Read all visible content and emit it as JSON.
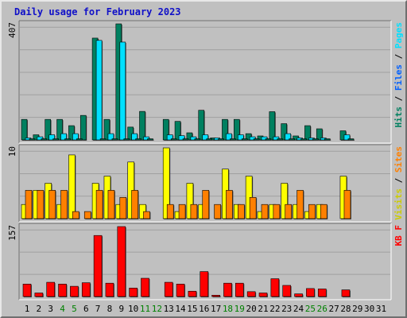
{
  "chart_data": {
    "type": "bar",
    "title": "Daily usage for February 2023",
    "days": [
      "1",
      "2",
      "3",
      "4",
      "5",
      "6",
      "7",
      "8",
      "9",
      "10",
      "11",
      "12",
      "13",
      "14",
      "15",
      "16",
      "17",
      "18",
      "19",
      "20",
      "21",
      "22",
      "23",
      "24",
      "25",
      "26",
      "27",
      "28",
      "29",
      "30",
      "31"
    ],
    "weekend_days": [
      4,
      5,
      11,
      12,
      18,
      19,
      25,
      26
    ],
    "colors": {
      "pages": "#008060",
      "files": "#00e0ff",
      "hits": "#008060",
      "visits": "#ffff00",
      "sites": "#ff8000",
      "kbf": "#ff0000",
      "weekend_tick": "#008000",
      "tick": "#000000"
    },
    "panels": [
      {
        "id": "hits-panel",
        "max_label": "407",
        "ymax": 407,
        "legend": [
          {
            "text": "Hits",
            "color": "#008060"
          },
          {
            "text": " / ",
            "color": "#000000"
          },
          {
            "text": "Files",
            "color": "#0060ff"
          },
          {
            "text": " / ",
            "color": "#000000"
          },
          {
            "text": "Pages",
            "color": "#00e0ff"
          }
        ],
        "series": [
          {
            "name": "Hits",
            "key": "hits",
            "values": [
              72,
              18,
              72,
              72,
              50,
              86,
              357,
              72,
              407,
              45,
              100,
              0,
              72,
              65,
              25,
              104,
              7,
              72,
              72,
              22,
              14,
              99,
              57,
              14,
              50,
              39,
              0,
              32,
              0,
              0,
              0
            ]
          },
          {
            "name": "Files",
            "key": "files",
            "values": [
              7,
              11,
              18,
              22,
              22,
              0,
              349,
              22,
              343,
              22,
              11,
              0,
              18,
              15,
              11,
              18,
              7,
              22,
              18,
              11,
              11,
              11,
              22,
              7,
              7,
              7,
              0,
              18,
              0,
              0,
              0
            ]
          },
          {
            "name": "Pages",
            "key": "pages",
            "values": [
              4,
              4,
              4,
              4,
              4,
              0,
              4,
              4,
              4,
              4,
              4,
              0,
              4,
              4,
              4,
              4,
              4,
              4,
              4,
              4,
              4,
              4,
              4,
              4,
              4,
              4,
              0,
              4,
              0,
              0,
              0
            ]
          }
        ]
      },
      {
        "id": "visits-panel",
        "max_label": "10",
        "ymax": 10,
        "legend": [
          {
            "text": "Visits",
            "color": "#cccc00"
          },
          {
            "text": " / ",
            "color": "#000000"
          },
          {
            "text": "Sites",
            "color": "#ff8000"
          }
        ],
        "series": [
          {
            "name": "Visits",
            "key": "visits",
            "values": [
              2,
              4,
              5,
              2,
              9,
              0,
              5,
              6,
              2,
              8,
              2,
              0,
              10,
              1,
              5,
              2,
              0,
              7,
              2,
              6,
              1,
              2,
              5,
              2,
              1,
              2,
              0,
              6,
              0,
              0,
              0
            ]
          },
          {
            "name": "Sites",
            "key": "sites",
            "values": [
              4,
              4,
              4,
              4,
              1,
              1,
              4,
              4,
              3,
              4,
              1,
              0,
              2,
              2,
              2,
              4,
              2,
              4,
              2,
              3,
              2,
              2,
              2,
              4,
              2,
              2,
              0,
              4,
              0,
              0,
              0
            ]
          }
        ]
      },
      {
        "id": "kbytes-panel",
        "max_label": "157",
        "ymax": 157,
        "legend": [
          {
            "text": "KB F",
            "color": "#ff0000"
          }
        ],
        "series": [
          {
            "name": "KB F",
            "key": "kbf",
            "values": [
              28,
              8,
              32,
              28,
              23,
              31,
              137,
              30,
              157,
              19,
              41,
              0,
              32,
              28,
              12,
              56,
              3,
              30,
              30,
              11,
              8,
              40,
              25,
              6,
              18,
              17,
              0,
              15,
              0,
              0,
              0
            ]
          }
        ]
      }
    ]
  }
}
